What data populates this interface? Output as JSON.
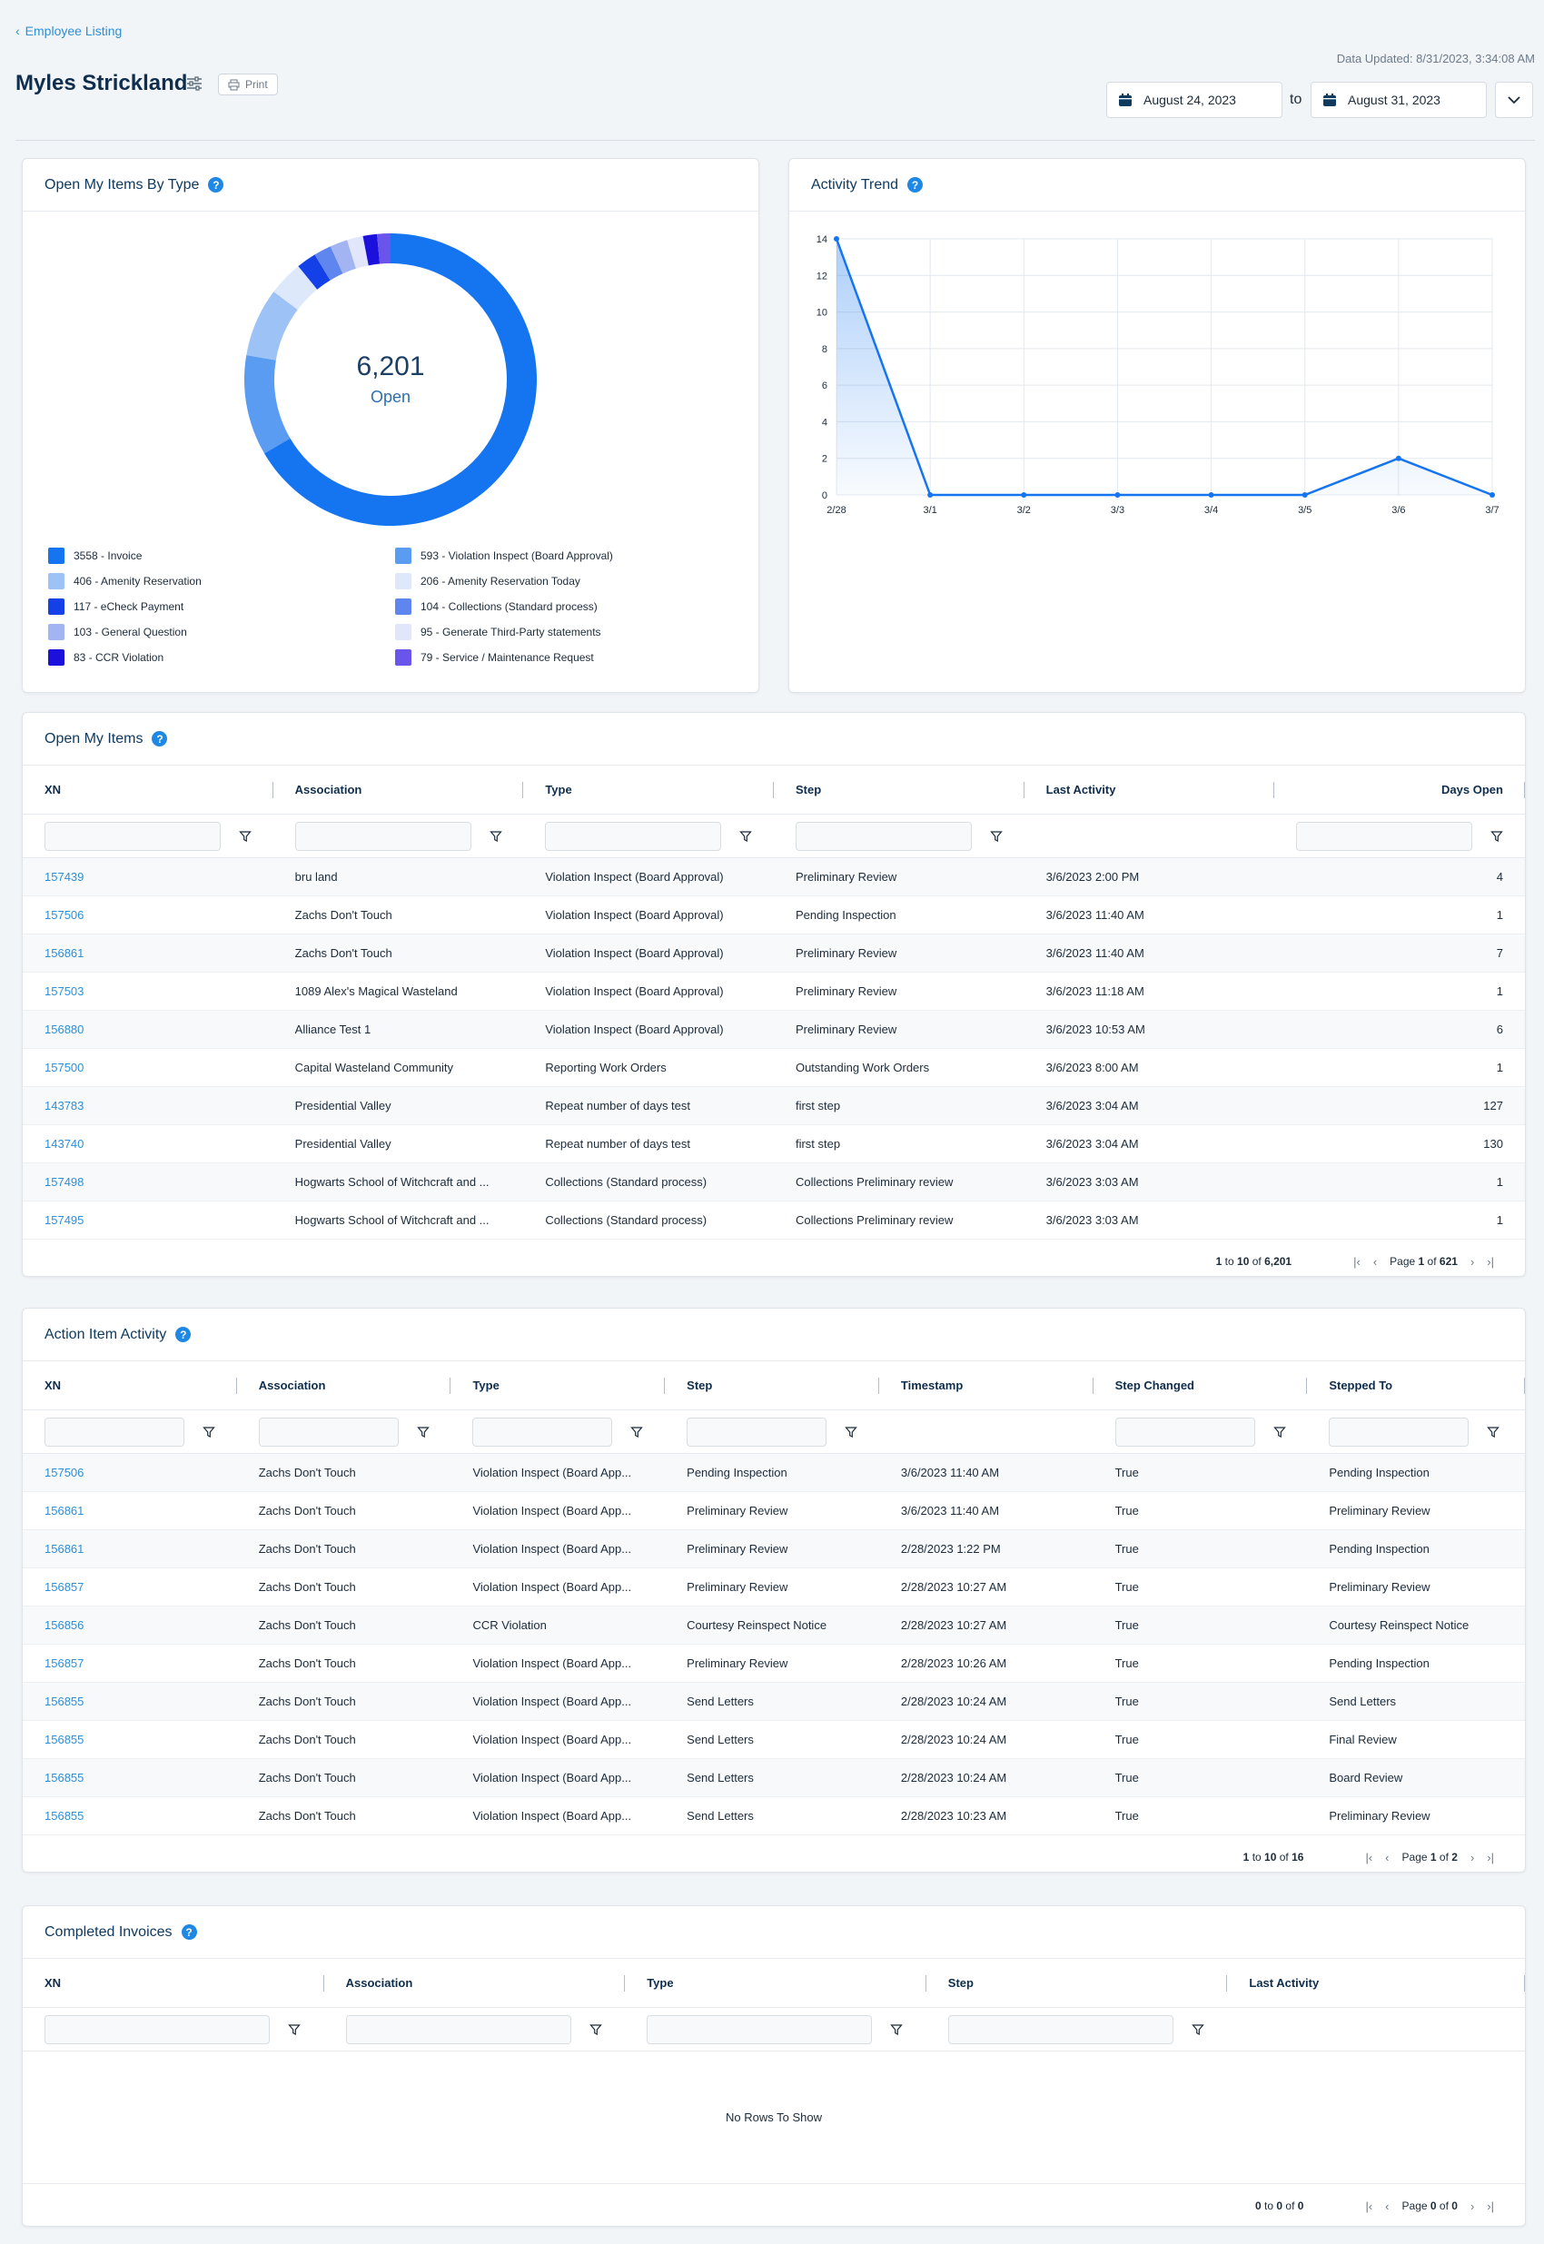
{
  "nav": {
    "back_label": "Employee Listing"
  },
  "header": {
    "title": "Myles Strickland",
    "print_label": "Print",
    "updated": "Data Updated: 8/31/2023, 3:34:08 AM",
    "date_from": "August 24, 2023",
    "date_to": "August 31, 2023",
    "to_label": "to"
  },
  "donut_card": {
    "title": "Open My Items By Type",
    "center_value": "6,201",
    "center_label": "Open",
    "legend": [
      {
        "label": "3558 - Invoice",
        "color": "#1575f0"
      },
      {
        "label": "593 - Violation Inspect (Board Approval)",
        "color": "#5a9cf2"
      },
      {
        "label": "406 - Amenity Reservation",
        "color": "#9dc3f6"
      },
      {
        "label": "206 - Amenity Reservation Today",
        "color": "#dde9fb"
      },
      {
        "label": "117 - eCheck Payment",
        "color": "#1440e8"
      },
      {
        "label": "104 - Collections (Standard process)",
        "color": "#5f86ef"
      },
      {
        "label": "103 - General Question",
        "color": "#a3b4f3"
      },
      {
        "label": "95 - Generate Third-Party statements",
        "color": "#e1e6fb"
      },
      {
        "label": "83 - CCR Violation",
        "color": "#1c10dd"
      },
      {
        "label": "79 - Service / Maintenance Request",
        "color": "#6a55ec"
      }
    ]
  },
  "chart_data": {
    "type": "line",
    "title": "Activity Trend",
    "x": [
      "2/28",
      "3/1",
      "3/2",
      "3/3",
      "3/4",
      "3/5",
      "3/6",
      "3/7"
    ],
    "series": [
      {
        "values": [
          14,
          0,
          0,
          0,
          0,
          0,
          2,
          0
        ]
      }
    ],
    "ylim": [
      0,
      14
    ],
    "yticks": [
      0,
      2,
      4,
      6,
      8,
      10,
      12,
      14
    ],
    "grid": true,
    "color": "#1575f0"
  },
  "open_items": {
    "title": "Open My Items",
    "columns": [
      "XN",
      "Association",
      "Type",
      "Step",
      "Last Activity",
      "Days Open"
    ],
    "rows": [
      [
        "157439",
        "bru land",
        "Violation Inspect (Board Approval)",
        "Preliminary Review",
        "3/6/2023 2:00 PM",
        "4"
      ],
      [
        "157506",
        "Zachs Don't Touch",
        "Violation Inspect (Board Approval)",
        "Pending Inspection",
        "3/6/2023 11:40 AM",
        "1"
      ],
      [
        "156861",
        "Zachs Don't Touch",
        "Violation Inspect (Board Approval)",
        "Preliminary Review",
        "3/6/2023 11:40 AM",
        "7"
      ],
      [
        "157503",
        "1089 Alex's Magical Wasteland",
        "Violation Inspect (Board Approval)",
        "Preliminary Review",
        "3/6/2023 11:18 AM",
        "1"
      ],
      [
        "156880",
        "Alliance Test 1",
        "Violation Inspect (Board Approval)",
        "Preliminary Review",
        "3/6/2023 10:53 AM",
        "6"
      ],
      [
        "157500",
        "Capital Wasteland Community",
        "Reporting Work Orders",
        "Outstanding Work Orders",
        "3/6/2023 8:00 AM",
        "1"
      ],
      [
        "143783",
        "Presidential Valley",
        "Repeat number of days test",
        "first step",
        "3/6/2023 3:04 AM",
        "127"
      ],
      [
        "143740",
        "Presidential Valley",
        "Repeat number of days test",
        "first step",
        "3/6/2023 3:04 AM",
        "130"
      ],
      [
        "157498",
        "Hogwarts School of Witchcraft and ...",
        "Collections (Standard process)",
        "Collections Preliminary review",
        "3/6/2023 3:03 AM",
        "1"
      ],
      [
        "157495",
        "Hogwarts School of Witchcraft and ...",
        "Collections (Standard process)",
        "Collections Preliminary review",
        "3/6/2023 3:03 AM",
        "1"
      ]
    ],
    "pager": {
      "from": "1",
      "to": "10",
      "total": "6,201",
      "page": "1",
      "pages": "621"
    }
  },
  "activity": {
    "title": "Action Item Activity",
    "columns": [
      "XN",
      "Association",
      "Type",
      "Step",
      "Timestamp",
      "Step Changed",
      "Stepped To"
    ],
    "rows": [
      [
        "157506",
        "Zachs Don't Touch",
        "Violation Inspect (Board App...",
        "Pending Inspection",
        "3/6/2023 11:40 AM",
        "True",
        "Pending Inspection"
      ],
      [
        "156861",
        "Zachs Don't Touch",
        "Violation Inspect (Board App...",
        "Preliminary Review",
        "3/6/2023 11:40 AM",
        "True",
        "Preliminary Review"
      ],
      [
        "156861",
        "Zachs Don't Touch",
        "Violation Inspect (Board App...",
        "Preliminary Review",
        "2/28/2023 1:22 PM",
        "True",
        "Pending Inspection"
      ],
      [
        "156857",
        "Zachs Don't Touch",
        "Violation Inspect (Board App...",
        "Preliminary Review",
        "2/28/2023 10:27 AM",
        "True",
        "Preliminary Review"
      ],
      [
        "156856",
        "Zachs Don't Touch",
        "CCR Violation",
        "Courtesy Reinspect Notice",
        "2/28/2023 10:27 AM",
        "True",
        "Courtesy Reinspect Notice"
      ],
      [
        "156857",
        "Zachs Don't Touch",
        "Violation Inspect (Board App...",
        "Preliminary Review",
        "2/28/2023 10:26 AM",
        "True",
        "Pending Inspection"
      ],
      [
        "156855",
        "Zachs Don't Touch",
        "Violation Inspect (Board App...",
        "Send Letters",
        "2/28/2023 10:24 AM",
        "True",
        "Send Letters"
      ],
      [
        "156855",
        "Zachs Don't Touch",
        "Violation Inspect (Board App...",
        "Send Letters",
        "2/28/2023 10:24 AM",
        "True",
        "Final Review"
      ],
      [
        "156855",
        "Zachs Don't Touch",
        "Violation Inspect (Board App...",
        "Send Letters",
        "2/28/2023 10:24 AM",
        "True",
        "Board Review"
      ],
      [
        "156855",
        "Zachs Don't Touch",
        "Violation Inspect (Board App...",
        "Send Letters",
        "2/28/2023 10:23 AM",
        "True",
        "Preliminary Review"
      ]
    ],
    "pager": {
      "from": "1",
      "to": "10",
      "total": "16",
      "page": "1",
      "pages": "2"
    }
  },
  "invoices": {
    "title": "Completed Invoices",
    "columns": [
      "XN",
      "Association",
      "Type",
      "Step",
      "Last Activity"
    ],
    "empty": "No Rows To Show",
    "pager": {
      "from": "0",
      "to": "0",
      "total": "0",
      "page": "0",
      "pages": "0"
    }
  },
  "pager_words": {
    "to": "to",
    "of": "of",
    "page": "Page"
  }
}
